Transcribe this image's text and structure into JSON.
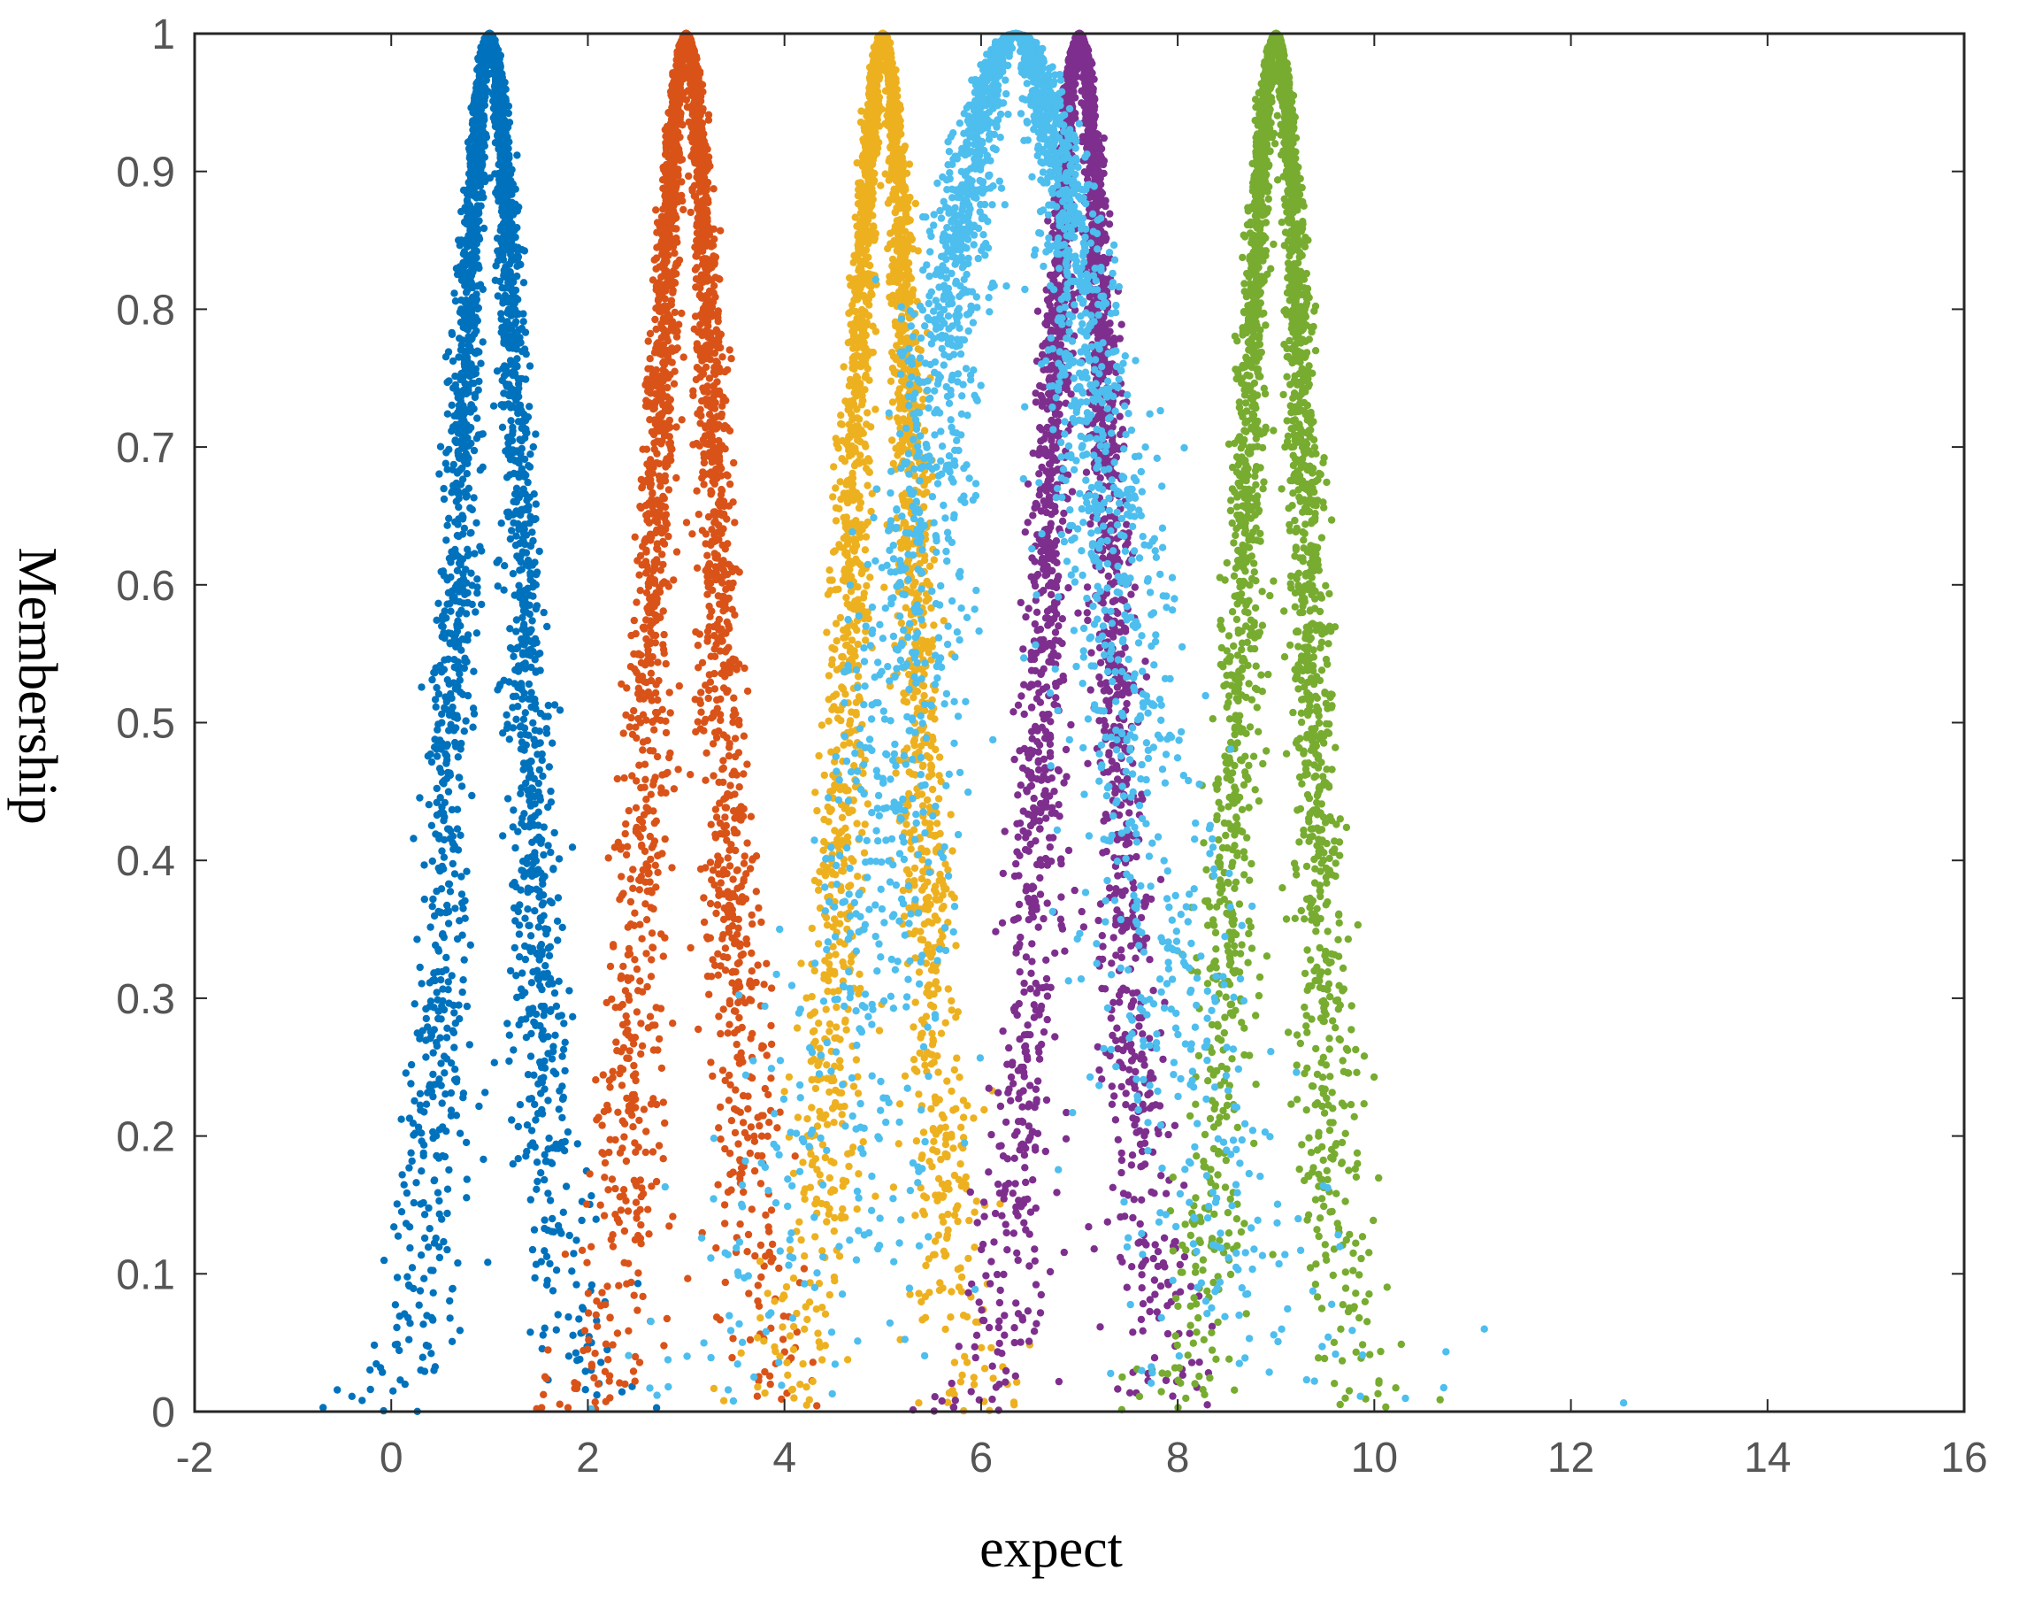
{
  "chart_data": {
    "type": "scatter",
    "title": "",
    "xlabel": "expect",
    "ylabel": "Membership",
    "xlim": [
      -2,
      16
    ],
    "ylim": [
      0,
      1
    ],
    "x_ticks": [
      "-2",
      "0",
      "2",
      "4",
      "6",
      "8",
      "10",
      "12",
      "14",
      "16"
    ],
    "y_ticks": [
      "0",
      "0.1",
      "0.2",
      "0.3",
      "0.4",
      "0.5",
      "0.6",
      "0.7",
      "0.8",
      "0.9",
      "1"
    ],
    "grid": false,
    "legend": "none",
    "series": [
      {
        "color": "#0072BD",
        "Ex": 1,
        "En": 0.33,
        "He": 0.1,
        "points": 3000
      },
      {
        "color": "#D95319",
        "Ex": 3,
        "En": 0.33,
        "He": 0.1,
        "points": 3000
      },
      {
        "color": "#EDB120",
        "Ex": 5,
        "En": 0.33,
        "He": 0.1,
        "points": 3000
      },
      {
        "color": "#7E2F8E",
        "Ex": 7,
        "En": 0.33,
        "He": 0.1,
        "points": 3000
      },
      {
        "color": "#77AC30",
        "Ex": 9,
        "En": 0.33,
        "He": 0.1,
        "points": 3000
      },
      {
        "color": "#4DBEEE",
        "Ex": 6.35,
        "En": 1.0,
        "He": 0.3,
        "points": 3000
      }
    ]
  }
}
